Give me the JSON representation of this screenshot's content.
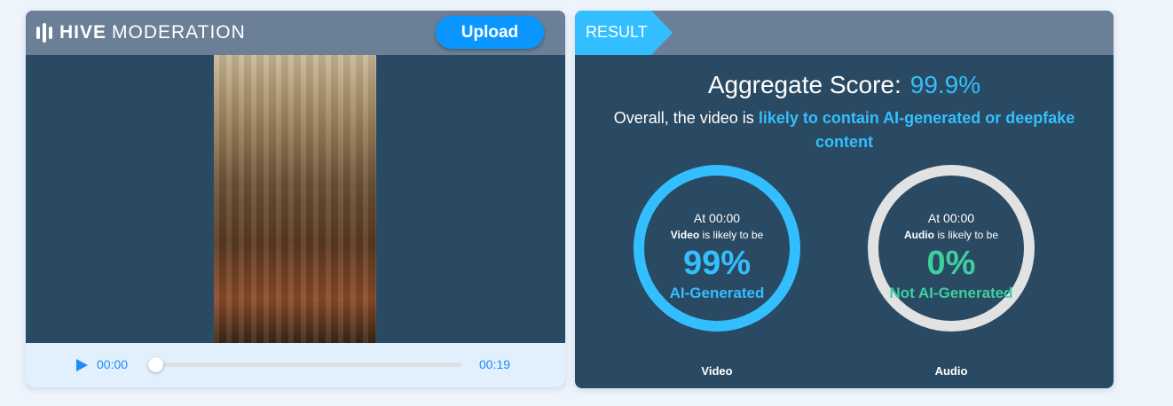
{
  "brand": {
    "bold": "HIVE",
    "light": "MODERATION"
  },
  "upload_label": "Upload",
  "player": {
    "current": "00:00",
    "duration": "00:19",
    "progress": 0
  },
  "result": {
    "tab": "RESULT",
    "aggregate_label": "Aggregate Score:",
    "aggregate_value": "99.9%",
    "desc_prefix": "Overall, the video is ",
    "desc_highlight": "likely to contain AI-generated or deepfake content",
    "cards": [
      {
        "at": "At 00:00",
        "subject": "Video",
        "likely": " is likely to be",
        "percent": "99%",
        "verdict": "AI-Generated",
        "caption": "Video",
        "color": "#33bfff"
      },
      {
        "at": "At 00:00",
        "subject": "Audio",
        "likely": " is likely to be",
        "percent": "0%",
        "verdict": "Not AI-Generated",
        "caption": "Audio",
        "color": "#3ecf9e"
      }
    ]
  },
  "colors": {
    "header": "#6b8096",
    "panel": "#2a4a63",
    "accent": "#33bfff",
    "upload": "#0a95ff",
    "safe": "#3ecf9e"
  }
}
